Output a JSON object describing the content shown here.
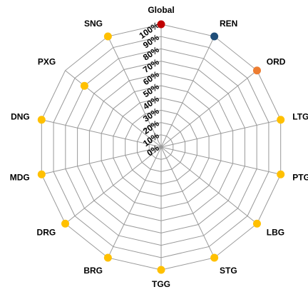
{
  "chart_data": {
    "type": "radar",
    "axes": [
      "Global",
      "REN",
      "ORD",
      "LTG",
      "PTG",
      "LBG",
      "STG",
      "TGG",
      "BRG",
      "DRG",
      "MDG",
      "DNG",
      "PXG",
      "SNG"
    ],
    "values": [
      100,
      100,
      100,
      100,
      100,
      100,
      100,
      100,
      100,
      100,
      100,
      100,
      80,
      100
    ],
    "point_colors": [
      "#c00000",
      "#1f4e79",
      "#ed7d31",
      "#ffc000",
      "#ffc000",
      "#ffc000",
      "#ffc000",
      "#ffc000",
      "#ffc000",
      "#ffc000",
      "#ffc000",
      "#ffc000",
      "#ffc000",
      "#ffc000"
    ],
    "r_ticks": [
      "0%",
      "10%",
      "20%",
      "30%",
      "40%",
      "50%",
      "60%",
      "70%",
      "80%",
      "90%",
      "100%"
    ],
    "r_range": [
      0,
      100
    ],
    "grid": true,
    "legend": "none"
  }
}
